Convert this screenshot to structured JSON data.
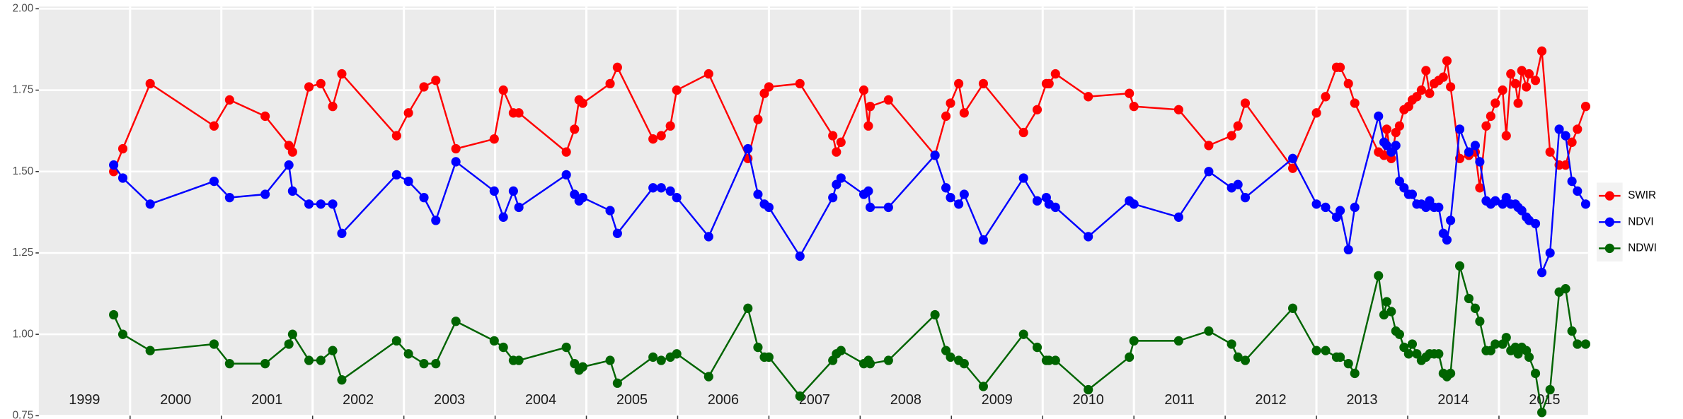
{
  "chart_data": {
    "type": "line",
    "x": [
      1999.82,
      1999.92,
      2000.22,
      2000.92,
      2001.09,
      2001.48,
      2001.74,
      2001.78,
      2001.96,
      2002.09,
      2002.22,
      2002.32,
      2002.92,
      2003.05,
      2003.22,
      2003.35,
      2003.57,
      2003.99,
      2004.09,
      2004.2,
      2004.26,
      2004.78,
      2004.87,
      2004.92,
      2004.96,
      2005.26,
      2005.34,
      2005.73,
      2005.82,
      2005.92,
      2005.99,
      2006.34,
      2006.77,
      2006.88,
      2006.95,
      2007.0,
      2007.34,
      2007.7,
      2007.74,
      2007.79,
      2008.04,
      2008.09,
      2008.11,
      2008.31,
      2008.82,
      2008.94,
      2008.99,
      2009.08,
      2009.14,
      2009.35,
      2009.79,
      2009.94,
      2010.04,
      2010.07,
      2010.14,
      2010.5,
      2010.95,
      2011.0,
      2011.49,
      2011.82,
      2012.07,
      2012.14,
      2012.22,
      2012.74,
      2013.0,
      2013.1,
      2013.22,
      2013.26,
      2013.35,
      2013.42,
      2013.68,
      2013.74,
      2013.77,
      2013.82,
      2013.87,
      2013.91,
      2013.96,
      2014.01,
      2014.05,
      2014.1,
      2014.15,
      2014.2,
      2014.24,
      2014.29,
      2014.34,
      2014.39,
      2014.43,
      2014.47,
      2014.57,
      2014.67,
      2014.74,
      2014.79,
      2014.86,
      2014.91,
      2014.96,
      2015.04,
      2015.08,
      2015.13,
      2015.18,
      2015.21,
      2015.25,
      2015.3,
      2015.33,
      2015.4,
      2015.47,
      2015.56,
      2015.66,
      2015.73,
      2015.8,
      2015.86,
      2015.95
    ],
    "series": [
      {
        "name": "SWIR",
        "color": "#ff0000",
        "values": [
          1.5,
          1.57,
          1.77,
          1.64,
          1.72,
          1.67,
          1.58,
          1.56,
          1.76,
          1.77,
          1.7,
          1.8,
          1.61,
          1.68,
          1.76,
          1.78,
          1.57,
          1.6,
          1.75,
          1.68,
          1.68,
          1.56,
          1.63,
          1.72,
          1.71,
          1.77,
          1.82,
          1.6,
          1.61,
          1.64,
          1.75,
          1.8,
          1.54,
          1.66,
          1.74,
          1.76,
          1.77,
          1.61,
          1.56,
          1.59,
          1.75,
          1.64,
          1.7,
          1.72,
          1.55,
          1.67,
          1.71,
          1.77,
          1.68,
          1.77,
          1.62,
          1.69,
          1.77,
          1.77,
          1.8,
          1.73,
          1.74,
          1.7,
          1.69,
          1.58,
          1.61,
          1.64,
          1.71,
          1.51,
          1.68,
          1.73,
          1.82,
          1.82,
          1.77,
          1.71,
          1.56,
          1.55,
          1.63,
          1.54,
          1.62,
          1.64,
          1.69,
          1.7,
          1.72,
          1.73,
          1.75,
          1.81,
          1.74,
          1.77,
          1.78,
          1.79,
          1.84,
          1.76,
          1.54,
          1.55,
          1.56,
          1.45,
          1.64,
          1.67,
          1.71,
          1.75,
          1.61,
          1.8,
          1.77,
          1.71,
          1.81,
          1.76,
          1.8,
          1.78,
          1.87,
          1.56,
          1.52,
          1.52,
          1.59,
          1.63,
          1.7
        ]
      },
      {
        "name": "NDVI",
        "color": "#0000ff",
        "values": [
          1.52,
          1.48,
          1.4,
          1.47,
          1.42,
          1.43,
          1.52,
          1.44,
          1.4,
          1.4,
          1.4,
          1.31,
          1.49,
          1.47,
          1.42,
          1.35,
          1.53,
          1.44,
          1.36,
          1.44,
          1.39,
          1.49,
          1.43,
          1.41,
          1.42,
          1.38,
          1.31,
          1.45,
          1.45,
          1.44,
          1.42,
          1.3,
          1.57,
          1.43,
          1.4,
          1.39,
          1.24,
          1.42,
          1.46,
          1.48,
          1.43,
          1.44,
          1.39,
          1.39,
          1.55,
          1.45,
          1.42,
          1.4,
          1.43,
          1.29,
          1.48,
          1.41,
          1.42,
          1.4,
          1.39,
          1.3,
          1.41,
          1.4,
          1.36,
          1.5,
          1.45,
          1.46,
          1.42,
          1.54,
          1.4,
          1.39,
          1.36,
          1.38,
          1.26,
          1.39,
          1.67,
          1.59,
          1.58,
          1.56,
          1.58,
          1.47,
          1.45,
          1.43,
          1.43,
          1.4,
          1.4,
          1.39,
          1.41,
          1.39,
          1.39,
          1.31,
          1.29,
          1.35,
          1.63,
          1.56,
          1.58,
          1.53,
          1.41,
          1.4,
          1.41,
          1.4,
          1.42,
          1.4,
          1.4,
          1.39,
          1.38,
          1.36,
          1.35,
          1.34,
          1.19,
          1.25,
          1.63,
          1.61,
          1.47,
          1.44,
          1.4
        ]
      },
      {
        "name": "NDWI",
        "color": "#006400",
        "values": [
          1.06,
          1.0,
          0.95,
          0.97,
          0.91,
          0.91,
          0.97,
          1.0,
          0.92,
          0.92,
          0.95,
          0.86,
          0.98,
          0.94,
          0.91,
          0.91,
          1.04,
          0.98,
          0.96,
          0.92,
          0.92,
          0.96,
          0.91,
          0.89,
          0.9,
          0.92,
          0.85,
          0.93,
          0.92,
          0.93,
          0.94,
          0.87,
          1.08,
          0.96,
          0.93,
          0.93,
          0.81,
          0.92,
          0.94,
          0.95,
          0.91,
          0.92,
          0.91,
          0.92,
          1.06,
          0.95,
          0.93,
          0.92,
          0.91,
          0.84,
          1.0,
          0.96,
          0.92,
          0.92,
          0.92,
          0.83,
          0.93,
          0.98,
          0.98,
          1.01,
          0.97,
          0.93,
          0.92,
          1.08,
          0.95,
          0.95,
          0.93,
          0.93,
          0.91,
          0.88,
          1.18,
          1.06,
          1.1,
          1.07,
          1.01,
          1.0,
          0.96,
          0.94,
          0.97,
          0.94,
          0.92,
          0.93,
          0.94,
          0.94,
          0.94,
          0.88,
          0.87,
          0.88,
          1.21,
          1.11,
          1.08,
          1.04,
          0.95,
          0.95,
          0.97,
          0.97,
          0.99,
          0.95,
          0.96,
          0.94,
          0.96,
          0.95,
          0.93,
          0.88,
          0.76,
          0.83,
          1.13,
          1.14,
          1.01,
          0.97,
          0.97
        ]
      }
    ],
    "xlim": [
      1999,
      2016
    ],
    "xticks": [
      {
        "value": 1999.5,
        "label": "1999"
      },
      {
        "value": 2000.5,
        "label": "2000"
      },
      {
        "value": 2001.5,
        "label": "2001"
      },
      {
        "value": 2002.5,
        "label": "2002"
      },
      {
        "value": 2003.5,
        "label": "2003"
      },
      {
        "value": 2004.5,
        "label": "2004"
      },
      {
        "value": 2005.5,
        "label": "2005"
      },
      {
        "value": 2006.5,
        "label": "2006"
      },
      {
        "value": 2007.5,
        "label": "2007"
      },
      {
        "value": 2008.5,
        "label": "2008"
      },
      {
        "value": 2009.5,
        "label": "2009"
      },
      {
        "value": 2010.5,
        "label": "2010"
      },
      {
        "value": 2011.5,
        "label": "2011"
      },
      {
        "value": 2012.5,
        "label": "2012"
      },
      {
        "value": 2013.5,
        "label": "2013"
      },
      {
        "value": 2014.5,
        "label": "2014"
      },
      {
        "value": 2015.5,
        "label": "2015"
      }
    ],
    "xgrid": [
      2000,
      2001,
      2002,
      2003,
      2004,
      2005,
      2006,
      2007,
      2008,
      2009,
      2010,
      2011,
      2012,
      2013,
      2014,
      2015
    ],
    "ylim": [
      0.75,
      2.0
    ],
    "yticks": [
      {
        "value": 0.75,
        "label": "0.75"
      },
      {
        "value": 1.0,
        "label": "1.00"
      },
      {
        "value": 1.25,
        "label": "1.25"
      },
      {
        "value": 1.5,
        "label": "1.50"
      },
      {
        "value": 1.75,
        "label": "1.75"
      },
      {
        "value": 2.0,
        "label": "2.00"
      }
    ],
    "grid": true,
    "legend": "right"
  }
}
